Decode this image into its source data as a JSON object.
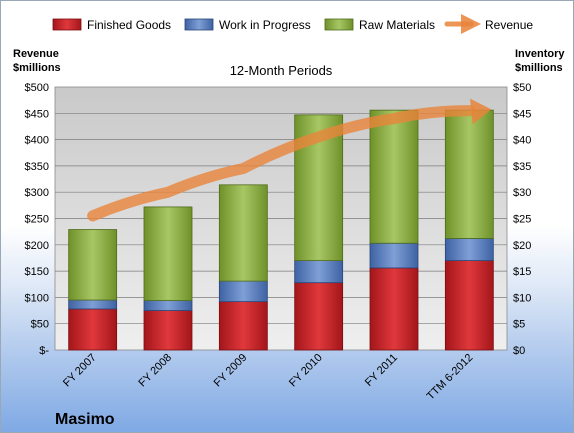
{
  "chart_data": {
    "type": "bar",
    "title": "12-Month Periods",
    "company": "Masimo",
    "left_axis_title": [
      "Revenue",
      "$millions"
    ],
    "right_axis_title": [
      "Inventory",
      "$millions"
    ],
    "categories": [
      "FY 2007",
      "FY 2008",
      "FY 2009",
      "FY 2010",
      "FY 2011",
      "TTM 6-2012"
    ],
    "stacked_series": [
      {
        "name": "Finished Goods",
        "color": "#c0181c",
        "values": [
          7.8,
          7.5,
          9.2,
          12.8,
          15.6,
          17.0
        ]
      },
      {
        "name": "Work in Progress",
        "color": "#4f76b8",
        "values": [
          1.7,
          1.9,
          3.9,
          4.2,
          4.7,
          4.2
        ]
      },
      {
        "name": "Raw Materials",
        "color": "#86a93b",
        "values": [
          13.4,
          17.8,
          18.3,
          27.7,
          25.3,
          24.4
        ]
      }
    ],
    "line_series": {
      "name": "Revenue",
      "color": "#e8843a",
      "values": [
        255,
        300,
        345,
        405,
        440,
        455
      ]
    },
    "left_axis": {
      "min": 0,
      "max": 500,
      "step": 50,
      "tick_labels": [
        "$-",
        "$50",
        "$100",
        "$150",
        "$200",
        "$250",
        "$300",
        "$350",
        "$400",
        "$450",
        "$500"
      ]
    },
    "right_axis": {
      "min": 0,
      "max": 50,
      "step": 5,
      "tick_labels": [
        "$0",
        "$5",
        "$10",
        "$15",
        "$20",
        "$25",
        "$30",
        "$35",
        "$40",
        "$45",
        "$50"
      ]
    },
    "legend_position": "top",
    "grid": true
  }
}
